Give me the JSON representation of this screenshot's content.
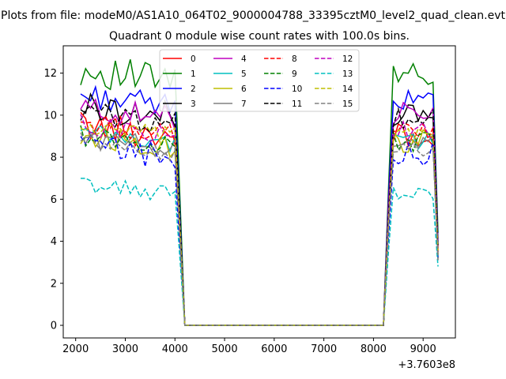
{
  "figure": {
    "suptitle": "Plots from file: modeM0/AS1A10_064T02_9000004788_33395cztM0_level2_quad_clean.evt",
    "offset_label": "+3.7603e8"
  },
  "chart_data": {
    "type": "line",
    "title": "Quadrant 0 module wise count rates with 100.0s bins.",
    "xlabel": "",
    "ylabel": "",
    "xlim": [
      1750,
      9650
    ],
    "ylim": [
      -0.6,
      13.3
    ],
    "x_ticks": [
      2000,
      3000,
      4000,
      5000,
      6000,
      7000,
      8000,
      9000
    ],
    "x_tick_labels": [
      "2000",
      "3000",
      "4000",
      "5000",
      "6000",
      "7000",
      "8000",
      "9000"
    ],
    "y_ticks": [
      0,
      2,
      4,
      6,
      8,
      10,
      12
    ],
    "y_tick_labels": [
      "0",
      "2",
      "4",
      "6",
      "8",
      "10",
      "12"
    ],
    "legend_position": "upper-center",
    "x_segments": [
      {
        "start": 2100,
        "step": 100,
        "count": 20
      },
      {
        "start": 4200,
        "step": 100,
        "count": 40
      },
      {
        "start": 8200,
        "step": 100,
        "count": 12
      }
    ],
    "series": [
      {
        "name": "0",
        "color": "#ff0000",
        "style": "solid",
        "base": 9.0,
        "amp": 0.7,
        "final": 3.6
      },
      {
        "name": "1",
        "color": "#008000",
        "style": "solid",
        "base": 11.6,
        "amp": 0.8,
        "final": 4.4
      },
      {
        "name": "2",
        "color": "#0000ff",
        "style": "solid",
        "base": 10.4,
        "amp": 0.6,
        "final": 4.0
      },
      {
        "name": "3",
        "color": "#000000",
        "style": "solid",
        "base": 9.9,
        "amp": 0.7,
        "final": 3.8
      },
      {
        "name": "4",
        "color": "#bf00bf",
        "style": "solid",
        "base": 9.8,
        "amp": 0.6,
        "final": 3.7
      },
      {
        "name": "5",
        "color": "#00bfbf",
        "style": "solid",
        "base": 8.6,
        "amp": 0.5,
        "final": 3.2
      },
      {
        "name": "6",
        "color": "#bfbf00",
        "style": "solid",
        "base": 8.5,
        "amp": 0.6,
        "final": 3.2
      },
      {
        "name": "7",
        "color": "#808080",
        "style": "solid",
        "base": 8.4,
        "amp": 0.5,
        "final": 3.1
      },
      {
        "name": "8",
        "color": "#ff0000",
        "style": "dashed",
        "base": 9.1,
        "amp": 0.5,
        "final": 3.5
      },
      {
        "name": "9",
        "color": "#008000",
        "style": "dashed",
        "base": 8.5,
        "amp": 0.5,
        "final": 3.3
      },
      {
        "name": "10",
        "color": "#0000ff",
        "style": "dashed",
        "base": 8.0,
        "amp": 0.7,
        "final": 3.1
      },
      {
        "name": "11",
        "color": "#000000",
        "style": "dashed",
        "base": 9.6,
        "amp": 0.6,
        "final": 3.7
      },
      {
        "name": "12",
        "color": "#bf00bf",
        "style": "dashed",
        "base": 9.0,
        "amp": 0.5,
        "final": 3.4
      },
      {
        "name": "13",
        "color": "#00bfbf",
        "style": "dashed",
        "base": 6.2,
        "amp": 0.4,
        "final": 2.8
      },
      {
        "name": "14",
        "color": "#bfbf00",
        "style": "dashed",
        "base": 8.9,
        "amp": 0.5,
        "final": 3.4
      },
      {
        "name": "15",
        "color": "#808080",
        "style": "dashed",
        "base": 8.2,
        "amp": 0.5,
        "final": 3.1
      }
    ]
  }
}
